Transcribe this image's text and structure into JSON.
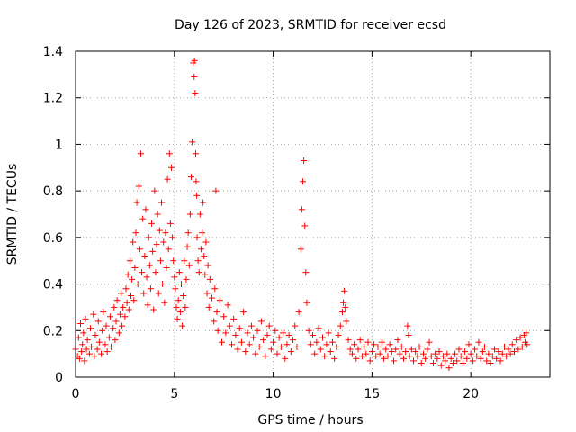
{
  "chart_data": {
    "type": "scatter",
    "title": "Day 126 of 2023, SRMTID for receiver ecsd",
    "xlabel": "GPS time / hours",
    "ylabel": "SRMTID / TECUs",
    "xlim": [
      0,
      24.0
    ],
    "ylim": [
      0,
      1.4
    ],
    "xticks": [
      0,
      5,
      10,
      15,
      20
    ],
    "yticks": [
      0,
      0.2,
      0.4,
      0.6,
      0.8,
      1,
      1.2,
      1.4
    ],
    "xtick_labels": [
      "0",
      "5",
      "10",
      "15",
      "20"
    ],
    "ytick_labels": [
      "0",
      "0.2",
      "0.4",
      "0.6",
      "0.8",
      "1",
      "1.2",
      "1.4"
    ],
    "grid": true,
    "marker": "+",
    "color": "#ff0000",
    "series": [
      {
        "name": "SRMTID",
        "points": [
          [
            0.0,
            0.12
          ],
          [
            0.1,
            0.09
          ],
          [
            0.15,
            0.17
          ],
          [
            0.2,
            0.08
          ],
          [
            0.25,
            0.23
          ],
          [
            0.3,
            0.11
          ],
          [
            0.35,
            0.14
          ],
          [
            0.4,
            0.19
          ],
          [
            0.45,
            0.07
          ],
          [
            0.5,
            0.25
          ],
          [
            0.55,
            0.12
          ],
          [
            0.6,
            0.16
          ],
          [
            0.7,
            0.1
          ],
          [
            0.75,
            0.21
          ],
          [
            0.8,
            0.13
          ],
          [
            0.9,
            0.27
          ],
          [
            0.95,
            0.09
          ],
          [
            1.0,
            0.18
          ],
          [
            1.1,
            0.12
          ],
          [
            1.15,
            0.24
          ],
          [
            1.2,
            0.15
          ],
          [
            1.3,
            0.1
          ],
          [
            1.35,
            0.2
          ],
          [
            1.4,
            0.28
          ],
          [
            1.5,
            0.14
          ],
          [
            1.55,
            0.22
          ],
          [
            1.6,
            0.11
          ],
          [
            1.7,
            0.17
          ],
          [
            1.75,
            0.26
          ],
          [
            1.8,
            0.13
          ],
          [
            1.9,
            0.21
          ],
          [
            1.95,
            0.3
          ],
          [
            2.0,
            0.16
          ],
          [
            2.05,
            0.24
          ],
          [
            2.1,
            0.33
          ],
          [
            2.2,
            0.19
          ],
          [
            2.25,
            0.27
          ],
          [
            2.3,
            0.36
          ],
          [
            2.35,
            0.22
          ],
          [
            2.4,
            0.3
          ],
          [
            2.5,
            0.26
          ],
          [
            2.55,
            0.38
          ],
          [
            2.6,
            0.32
          ],
          [
            2.65,
            0.44
          ],
          [
            2.7,
            0.29
          ],
          [
            2.75,
            0.5
          ],
          [
            2.8,
            0.35
          ],
          [
            2.85,
            0.42
          ],
          [
            2.9,
            0.58
          ],
          [
            2.95,
            0.33
          ],
          [
            3.0,
            0.47
          ],
          [
            3.05,
            0.62
          ],
          [
            3.1,
            0.75
          ],
          [
            3.15,
            0.4
          ],
          [
            3.2,
            0.82
          ],
          [
            3.25,
            0.55
          ],
          [
            3.3,
            0.96
          ],
          [
            3.35,
            0.45
          ],
          [
            3.4,
            0.68
          ],
          [
            3.45,
            0.36
          ],
          [
            3.5,
            0.52
          ],
          [
            3.55,
            0.72
          ],
          [
            3.6,
            0.43
          ],
          [
            3.65,
            0.31
          ],
          [
            3.7,
            0.6
          ],
          [
            3.75,
            0.48
          ],
          [
            3.8,
            0.38
          ],
          [
            3.85,
            0.66
          ],
          [
            3.9,
            0.54
          ],
          [
            3.95,
            0.29
          ],
          [
            4.0,
            0.8
          ],
          [
            4.05,
            0.45
          ],
          [
            4.1,
            0.57
          ],
          [
            4.15,
            0.7
          ],
          [
            4.2,
            0.36
          ],
          [
            4.25,
            0.63
          ],
          [
            4.3,
            0.5
          ],
          [
            4.35,
            0.75
          ],
          [
            4.4,
            0.4
          ],
          [
            4.45,
            0.58
          ],
          [
            4.5,
            0.32
          ],
          [
            4.55,
            0.62
          ],
          [
            4.6,
            0.47
          ],
          [
            4.65,
            0.85
          ],
          [
            4.7,
            0.55
          ],
          [
            4.75,
            0.96
          ],
          [
            4.8,
            0.66
          ],
          [
            4.85,
            0.9
          ],
          [
            4.9,
            0.6
          ],
          [
            4.95,
            0.5
          ],
          [
            5.0,
            0.43
          ],
          [
            5.05,
            0.38
          ],
          [
            5.1,
            0.3
          ],
          [
            5.15,
            0.25
          ],
          [
            5.2,
            0.33
          ],
          [
            5.25,
            0.45
          ],
          [
            5.3,
            0.28
          ],
          [
            5.35,
            0.4
          ],
          [
            5.4,
            0.22
          ],
          [
            5.45,
            0.35
          ],
          [
            5.5,
            0.5
          ],
          [
            5.55,
            0.3
          ],
          [
            5.6,
            0.42
          ],
          [
            5.65,
            0.56
          ],
          [
            5.7,
            0.62
          ],
          [
            5.75,
            0.48
          ],
          [
            5.8,
            0.7
          ],
          [
            5.85,
            0.86
          ],
          [
            5.9,
            1.01
          ],
          [
            5.95,
            1.35
          ],
          [
            6.0,
            1.29
          ],
          [
            6.02,
            1.36
          ],
          [
            6.05,
            1.22
          ],
          [
            6.08,
            0.96
          ],
          [
            6.1,
            0.84
          ],
          [
            6.13,
            0.78
          ],
          [
            6.15,
            0.6
          ],
          [
            6.2,
            0.5
          ],
          [
            6.25,
            0.45
          ],
          [
            6.3,
            0.7
          ],
          [
            6.35,
            0.55
          ],
          [
            6.4,
            0.62
          ],
          [
            6.45,
            0.75
          ],
          [
            6.5,
            0.52
          ],
          [
            6.55,
            0.44
          ],
          [
            6.6,
            0.58
          ],
          [
            6.65,
            0.36
          ],
          [
            6.7,
            0.48
          ],
          [
            6.75,
            0.3
          ],
          [
            6.8,
            0.42
          ],
          [
            6.9,
            0.34
          ],
          [
            7.0,
            0.24
          ],
          [
            7.05,
            0.38
          ],
          [
            7.1,
            0.8
          ],
          [
            7.15,
            0.28
          ],
          [
            7.2,
            0.2
          ],
          [
            7.3,
            0.33
          ],
          [
            7.4,
            0.15
          ],
          [
            7.5,
            0.26
          ],
          [
            7.6,
            0.19
          ],
          [
            7.7,
            0.31
          ],
          [
            7.8,
            0.22
          ],
          [
            7.9,
            0.14
          ],
          [
            8.0,
            0.25
          ],
          [
            8.1,
            0.18
          ],
          [
            8.2,
            0.12
          ],
          [
            8.3,
            0.21
          ],
          [
            8.4,
            0.15
          ],
          [
            8.5,
            0.28
          ],
          [
            8.6,
            0.11
          ],
          [
            8.7,
            0.19
          ],
          [
            8.8,
            0.14
          ],
          [
            8.9,
            0.22
          ],
          [
            9.0,
            0.17
          ],
          [
            9.1,
            0.1
          ],
          [
            9.2,
            0.2
          ],
          [
            9.3,
            0.13
          ],
          [
            9.4,
            0.24
          ],
          [
            9.5,
            0.16
          ],
          [
            9.6,
            0.09
          ],
          [
            9.7,
            0.18
          ],
          [
            9.8,
            0.22
          ],
          [
            9.9,
            0.12
          ],
          [
            10.0,
            0.15
          ],
          [
            10.1,
            0.2
          ],
          [
            10.2,
            0.1
          ],
          [
            10.3,
            0.17
          ],
          [
            10.4,
            0.13
          ],
          [
            10.5,
            0.19
          ],
          [
            10.6,
            0.08
          ],
          [
            10.7,
            0.14
          ],
          [
            10.8,
            0.18
          ],
          [
            10.9,
            0.11
          ],
          [
            11.0,
            0.16
          ],
          [
            11.1,
            0.22
          ],
          [
            11.2,
            0.13
          ],
          [
            11.3,
            0.28
          ],
          [
            11.4,
            0.55
          ],
          [
            11.45,
            0.72
          ],
          [
            11.5,
            0.84
          ],
          [
            11.55,
            0.93
          ],
          [
            11.6,
            0.65
          ],
          [
            11.65,
            0.45
          ],
          [
            11.7,
            0.32
          ],
          [
            11.8,
            0.2
          ],
          [
            11.9,
            0.14
          ],
          [
            12.0,
            0.18
          ],
          [
            12.1,
            0.1
          ],
          [
            12.2,
            0.15
          ],
          [
            12.3,
            0.21
          ],
          [
            12.4,
            0.12
          ],
          [
            12.5,
            0.17
          ],
          [
            12.6,
            0.09
          ],
          [
            12.7,
            0.14
          ],
          [
            12.8,
            0.19
          ],
          [
            12.9,
            0.11
          ],
          [
            13.0,
            0.15
          ],
          [
            13.1,
            0.08
          ],
          [
            13.2,
            0.13
          ],
          [
            13.3,
            0.18
          ],
          [
            13.4,
            0.22
          ],
          [
            13.5,
            0.28
          ],
          [
            13.55,
            0.32
          ],
          [
            13.6,
            0.37
          ],
          [
            13.65,
            0.3
          ],
          [
            13.7,
            0.24
          ],
          [
            13.8,
            0.16
          ],
          [
            13.9,
            0.12
          ],
          [
            14.0,
            0.1
          ],
          [
            14.1,
            0.14
          ],
          [
            14.2,
            0.08
          ],
          [
            14.3,
            0.12
          ],
          [
            14.4,
            0.16
          ],
          [
            14.5,
            0.09
          ],
          [
            14.6,
            0.13
          ],
          [
            14.7,
            0.1
          ],
          [
            14.8,
            0.15
          ],
          [
            14.9,
            0.07
          ],
          [
            15.0,
            0.11
          ],
          [
            15.1,
            0.14
          ],
          [
            15.2,
            0.09
          ],
          [
            15.3,
            0.13
          ],
          [
            15.4,
            0.1
          ],
          [
            15.5,
            0.15
          ],
          [
            15.6,
            0.08
          ],
          [
            15.7,
            0.12
          ],
          [
            15.8,
            0.09
          ],
          [
            15.9,
            0.14
          ],
          [
            16.0,
            0.11
          ],
          [
            16.1,
            0.07
          ],
          [
            16.2,
            0.12
          ],
          [
            16.3,
            0.16
          ],
          [
            16.4,
            0.1
          ],
          [
            16.5,
            0.13
          ],
          [
            16.6,
            0.08
          ],
          [
            16.7,
            0.11
          ],
          [
            16.8,
            0.22
          ],
          [
            16.85,
            0.18
          ],
          [
            16.9,
            0.09
          ],
          [
            17.0,
            0.12
          ],
          [
            17.1,
            0.07
          ],
          [
            17.2,
            0.11
          ],
          [
            17.3,
            0.09
          ],
          [
            17.4,
            0.13
          ],
          [
            17.5,
            0.06
          ],
          [
            17.6,
            0.1
          ],
          [
            17.7,
            0.08
          ],
          [
            17.8,
            0.12
          ],
          [
            17.9,
            0.15
          ],
          [
            18.0,
            0.09
          ],
          [
            18.1,
            0.06
          ],
          [
            18.2,
            0.1
          ],
          [
            18.3,
            0.08
          ],
          [
            18.4,
            0.11
          ],
          [
            18.5,
            0.05
          ],
          [
            18.6,
            0.09
          ],
          [
            18.7,
            0.07
          ],
          [
            18.8,
            0.1
          ],
          [
            18.9,
            0.04
          ],
          [
            19.0,
            0.08
          ],
          [
            19.1,
            0.06
          ],
          [
            19.2,
            0.1
          ],
          [
            19.3,
            0.07
          ],
          [
            19.4,
            0.12
          ],
          [
            19.5,
            0.09
          ],
          [
            19.6,
            0.06
          ],
          [
            19.7,
            0.11
          ],
          [
            19.8,
            0.08
          ],
          [
            19.9,
            0.14
          ],
          [
            20.0,
            0.1
          ],
          [
            20.1,
            0.07
          ],
          [
            20.2,
            0.12
          ],
          [
            20.3,
            0.09
          ],
          [
            20.4,
            0.15
          ],
          [
            20.5,
            0.08
          ],
          [
            20.6,
            0.11
          ],
          [
            20.7,
            0.13
          ],
          [
            20.8,
            0.07
          ],
          [
            20.9,
            0.1
          ],
          [
            21.0,
            0.06
          ],
          [
            21.1,
            0.09
          ],
          [
            21.2,
            0.12
          ],
          [
            21.3,
            0.08
          ],
          [
            21.4,
            0.11
          ],
          [
            21.5,
            0.07
          ],
          [
            21.6,
            0.1
          ],
          [
            21.7,
            0.13
          ],
          [
            21.8,
            0.09
          ],
          [
            21.9,
            0.12
          ],
          [
            22.0,
            0.1
          ],
          [
            22.1,
            0.14
          ],
          [
            22.2,
            0.11
          ],
          [
            22.3,
            0.16
          ],
          [
            22.4,
            0.12
          ],
          [
            22.5,
            0.17
          ],
          [
            22.6,
            0.13
          ],
          [
            22.7,
            0.18
          ],
          [
            22.75,
            0.15
          ],
          [
            22.8,
            0.19
          ],
          [
            22.85,
            0.14
          ]
        ]
      }
    ]
  }
}
